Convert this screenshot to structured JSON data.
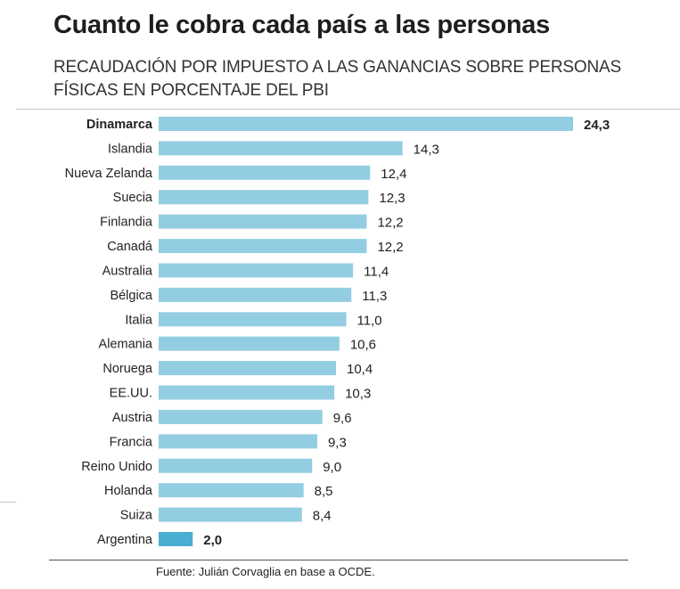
{
  "chart_data": {
    "type": "bar",
    "orientation": "horizontal",
    "title": "Cuanto le cobra cada país a las personas",
    "subtitle": "RECAUDACIÓN POR IMPUESTO A LAS GANANCIAS SOBRE PERSONAS FÍSICAS EN PORCENTAJE DEL PBI",
    "categories": [
      "Dinamarca",
      "Islandia",
      "Nueva Zelanda",
      "Suecia",
      "Finlandia",
      "Canadá",
      "Australia",
      "Bélgica",
      "Italia",
      "Alemania",
      "Noruega",
      "EE.UU.",
      "Austria",
      "Francia",
      "Reino Unido",
      "Holanda",
      "Suiza",
      "Argentina"
    ],
    "values": [
      24.3,
      14.3,
      12.4,
      12.3,
      12.2,
      12.2,
      11.4,
      11.3,
      11.0,
      10.6,
      10.4,
      10.3,
      9.6,
      9.3,
      9.0,
      8.5,
      8.4,
      2.0
    ],
    "value_labels": [
      "24,3",
      "14,3",
      "12,4",
      "12,3",
      "12,2",
      "12,2",
      "11,4",
      "11,3",
      "11,0",
      "10,6",
      "10,4",
      "10,3",
      "9,6",
      "9,3",
      "9,0",
      "8,5",
      "8,4",
      "2,0"
    ],
    "highlighted": [
      "Dinamarca",
      "Argentina"
    ],
    "xlim": [
      0,
      24.3
    ],
    "grid": false,
    "colors": {
      "bar": "#93cde2",
      "highlight_bar": "#4aaed2",
      "text": "#222222"
    },
    "source": "Fuente: Julián Corvaglia en base a OCDE."
  }
}
